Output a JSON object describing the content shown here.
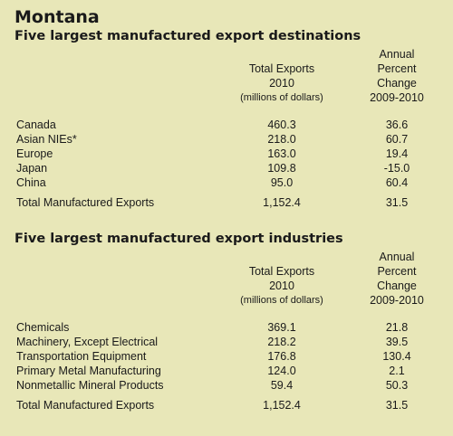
{
  "title": "Montana",
  "section1": {
    "heading": "Five largest manufactured export destinations",
    "col1": {
      "line1": "Total Exports",
      "line2": "2010",
      "line3": "(millions of dollars)"
    },
    "col2": {
      "line1": "Annual",
      "line2": "Percent",
      "line3": "Change",
      "line4": "2009-2010"
    },
    "rows": [
      {
        "label": "Canada",
        "total": "460.3",
        "change": "36.6"
      },
      {
        "label": "Asian NIEs*",
        "total": "218.0",
        "change": "60.7"
      },
      {
        "label": "Europe",
        "total": "163.0",
        "change": "19.4"
      },
      {
        "label": "Japan",
        "total": "109.8",
        "change": "-15.0"
      },
      {
        "label": "China",
        "total": "95.0",
        "change": "60.4"
      }
    ],
    "total_row": {
      "label": "Total Manufactured Exports",
      "total": "1,152.4",
      "change": "31.5"
    }
  },
  "section2": {
    "heading": "Five largest manufactured export industries",
    "col1": {
      "line1": "Total Exports",
      "line2": "2010",
      "line3": "(millions of dollars)"
    },
    "col2": {
      "line1": "Annual",
      "line2": "Percent",
      "line3": "Change",
      "line4": "2009-2010"
    },
    "rows": [
      {
        "label": "Chemicals",
        "total": "369.1",
        "change": "21.8"
      },
      {
        "label": "Machinery, Except Electrical",
        "total": "218.2",
        "change": "39.5"
      },
      {
        "label": "Transportation Equipment",
        "total": "176.8",
        "change": "130.4"
      },
      {
        "label": "Primary Metal Manufacturing",
        "total": "124.0",
        "change": "2.1"
      },
      {
        "label": "Nonmetallic Mineral Products",
        "total": "59.4",
        "change": "50.3"
      }
    ],
    "total_row": {
      "label": "Total Manufactured Exports",
      "total": "1,152.4",
      "change": "31.5"
    }
  }
}
